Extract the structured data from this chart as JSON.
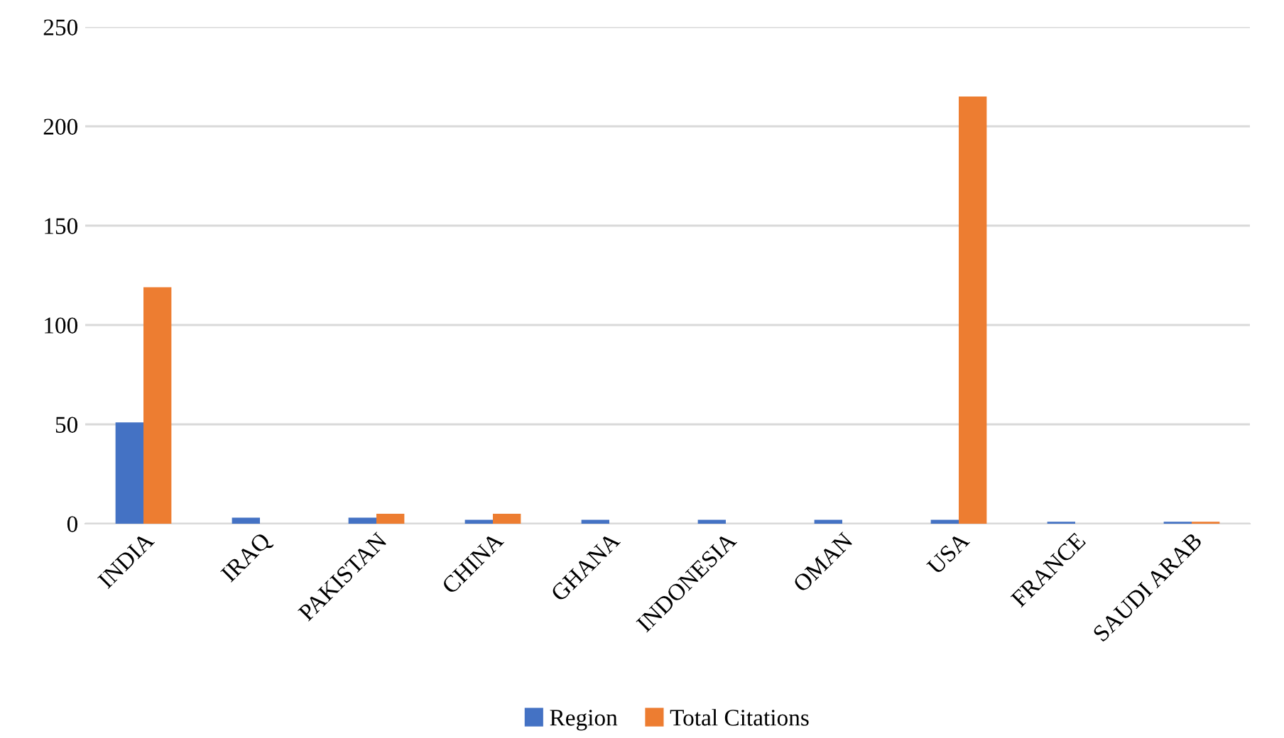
{
  "chart_data": {
    "type": "bar",
    "categories": [
      "INDIA",
      "IRAQ",
      "PAKISTAN",
      "CHINA",
      "GHANA",
      "INDONESIA",
      "OMAN",
      "USA",
      "FRANCE",
      "SAUDI ARAB"
    ],
    "series": [
      {
        "name": "Region",
        "color": "#4472c4",
        "values": [
          51,
          3,
          3,
          2,
          2,
          2,
          2,
          2,
          1,
          1
        ]
      },
      {
        "name": "Total Citations",
        "color": "#ed7d31",
        "values": [
          119,
          0,
          5,
          5,
          0,
          0,
          0,
          215,
          0,
          1
        ]
      }
    ],
    "ylim": [
      0,
      250
    ],
    "yticks": [
      0,
      50,
      100,
      150,
      200,
      250
    ],
    "grid": "y",
    "legend": "bottom"
  }
}
